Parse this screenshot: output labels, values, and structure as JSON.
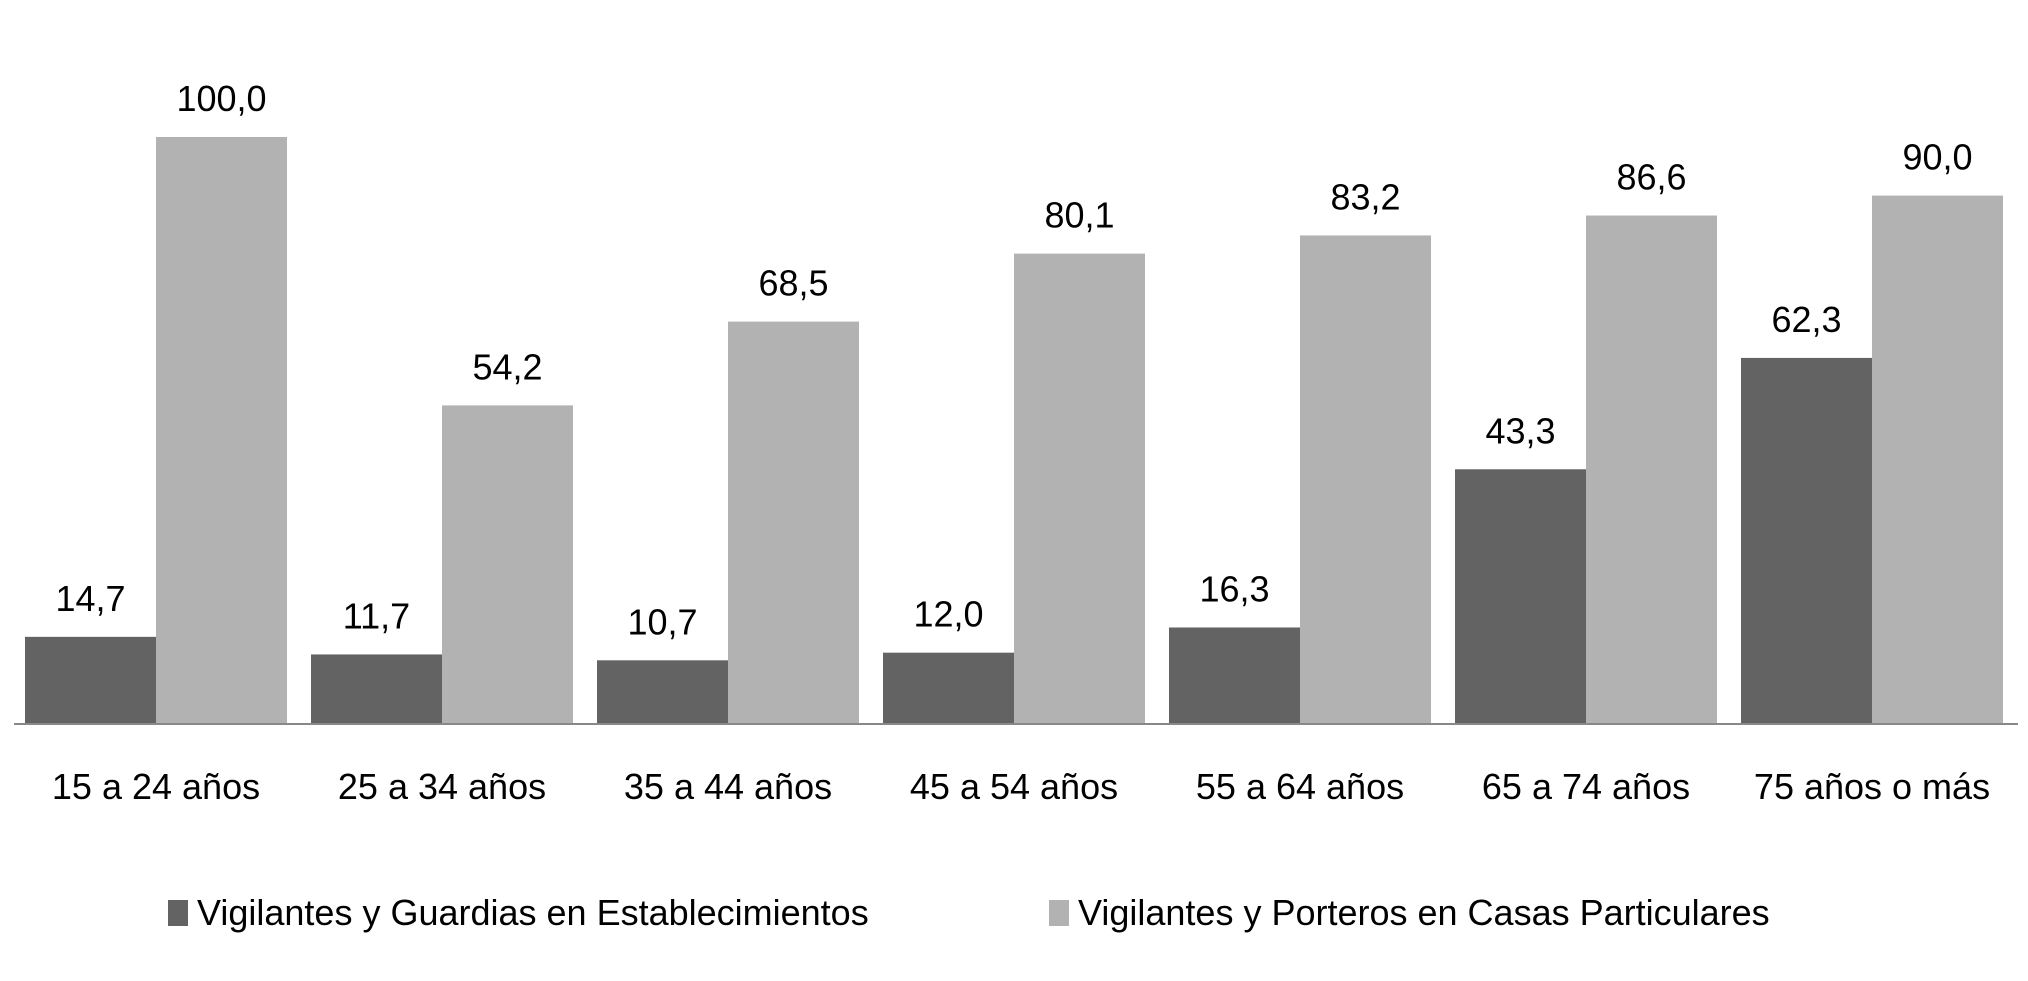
{
  "chart_data": {
    "type": "bar",
    "title": "",
    "xlabel": "",
    "ylabel": "",
    "ylim": [
      0,
      100
    ],
    "grid": false,
    "legend_position": "bottom",
    "categories": [
      "15 a 24 años",
      "25 a 34 años",
      "35 a 44 años",
      "45 a 54 años",
      "55 a 64 años",
      "65 a 74 años",
      "75 años o más"
    ],
    "series": [
      {
        "name": "Vigilantes y Guardias en Establecimientos",
        "color": "#636363",
        "values": [
          14.7,
          11.7,
          10.7,
          12.0,
          16.3,
          43.3,
          62.3
        ],
        "labels": [
          "14,7",
          "11,7",
          "10,7",
          "12,0",
          "16,3",
          "43,3",
          "62,3"
        ]
      },
      {
        "name": "Vigilantes y Porteros en Casas Particulares",
        "color": "#b2b2b2",
        "values": [
          100.0,
          54.2,
          68.5,
          80.1,
          83.2,
          86.6,
          90.0
        ],
        "labels": [
          "100,0",
          "54,2",
          "68,5",
          "80,1",
          "83,2",
          "86,6",
          "90,0"
        ]
      }
    ]
  }
}
